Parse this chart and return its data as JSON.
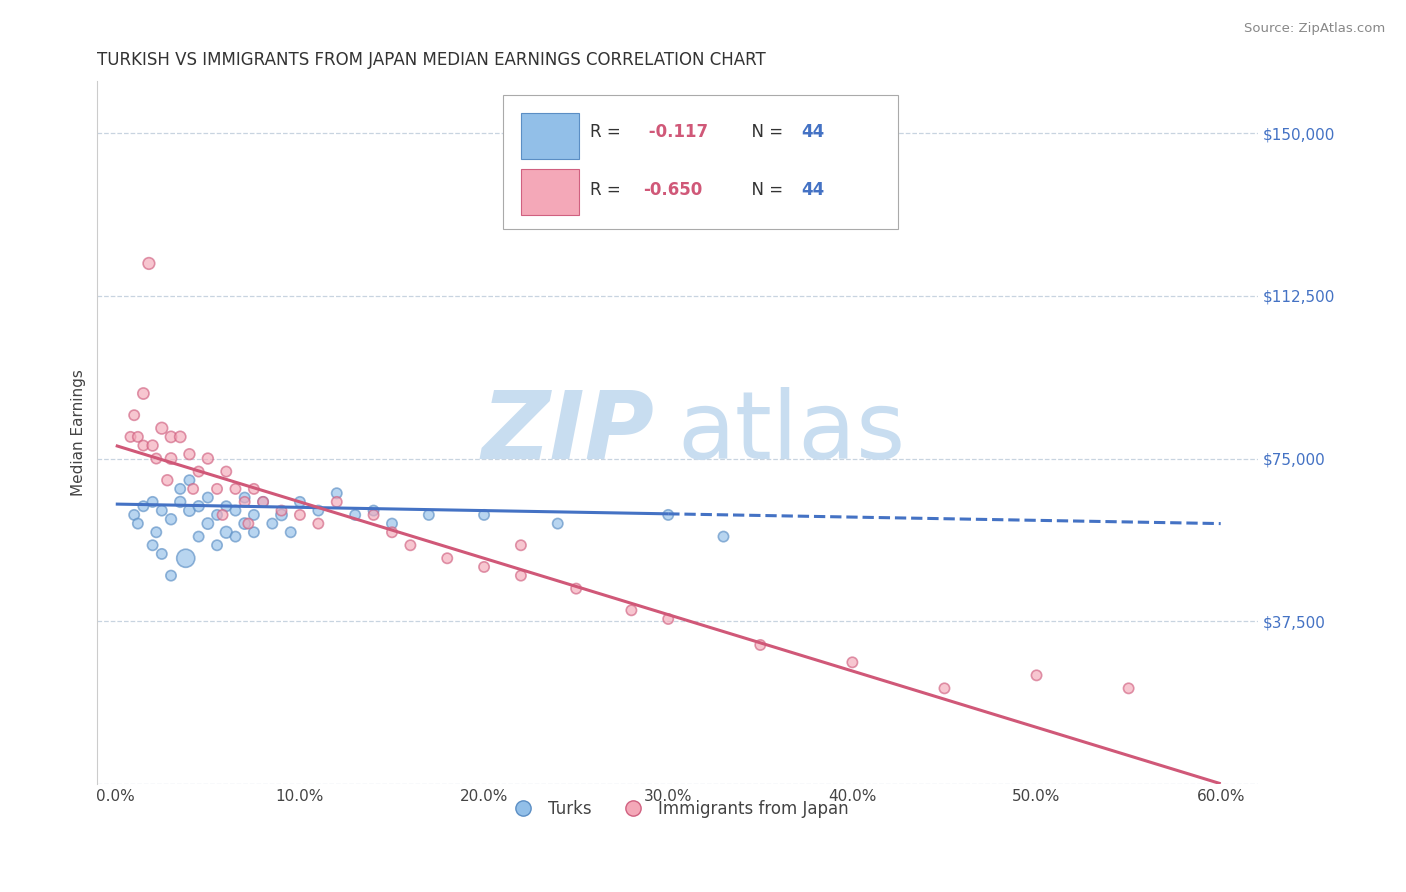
{
  "title": "TURKISH VS IMMIGRANTS FROM JAPAN MEDIAN EARNINGS CORRELATION CHART",
  "source_text": "Source: ZipAtlas.com",
  "xlabel_ticks": [
    "0.0%",
    "10.0%",
    "20.0%",
    "30.0%",
    "40.0%",
    "50.0%",
    "60.0%"
  ],
  "xlabel_vals": [
    0.0,
    10.0,
    20.0,
    30.0,
    40.0,
    50.0,
    60.0
  ],
  "ylabel_ticks": [
    0,
    37500,
    75000,
    112500,
    150000
  ],
  "ylabel_labels": [
    "",
    "$37,500",
    "$75,000",
    "$112,500",
    "$150,000"
  ],
  "ylim": [
    0,
    162000
  ],
  "xlim": [
    -1,
    62
  ],
  "legend_labels_bottom": [
    "Turks",
    "Immigrants from Japan"
  ],
  "turks_color": "#92bfe8",
  "japan_color": "#f4a8b8",
  "turks_edge_color": "#5b8ec4",
  "japan_edge_color": "#d06080",
  "trend_blue_color": "#4472c4",
  "trend_pink_color": "#d05878",
  "watermark_zip": "ZIP",
  "watermark_atlas": "atlas",
  "watermark_color": "#c8ddf0",
  "grid_color": "#c8d4e0",
  "background_color": "#ffffff",
  "r_color": "#d05878",
  "n_color": "#4472c4",
  "turks_x": [
    1.0,
    1.5,
    2.0,
    2.5,
    3.0,
    3.5,
    3.5,
    4.0,
    4.0,
    4.5,
    5.0,
    5.0,
    5.5,
    6.0,
    6.0,
    6.5,
    7.0,
    7.0,
    7.5,
    8.0,
    8.5,
    9.0,
    9.5,
    10.0,
    11.0,
    12.0,
    13.0,
    14.0,
    15.0,
    17.0,
    20.0,
    24.0,
    30.0,
    33.0,
    2.0,
    2.5,
    3.0,
    4.5,
    5.5,
    6.5,
    7.5,
    1.2,
    3.8,
    2.2
  ],
  "turks_y": [
    62000,
    64000,
    65000,
    63000,
    61000,
    68000,
    65000,
    70000,
    63000,
    64000,
    66000,
    60000,
    62000,
    64000,
    58000,
    63000,
    66000,
    60000,
    62000,
    65000,
    60000,
    62000,
    58000,
    65000,
    63000,
    67000,
    62000,
    63000,
    60000,
    62000,
    62000,
    60000,
    62000,
    57000,
    55000,
    53000,
    48000,
    57000,
    55000,
    57000,
    58000,
    60000,
    52000,
    58000
  ],
  "japan_x": [
    0.8,
    1.0,
    1.2,
    1.5,
    1.8,
    2.0,
    2.2,
    2.5,
    3.0,
    3.0,
    3.5,
    4.0,
    4.5,
    5.0,
    5.5,
    6.0,
    6.5,
    7.0,
    7.5,
    8.0,
    9.0,
    10.0,
    11.0,
    12.0,
    14.0,
    15.0,
    16.0,
    18.0,
    20.0,
    22.0,
    25.0,
    28.0,
    30.0,
    35.0,
    40.0,
    50.0,
    55.0,
    1.5,
    2.8,
    4.2,
    5.8,
    7.2,
    22.0,
    45.0
  ],
  "japan_y": [
    80000,
    85000,
    80000,
    78000,
    120000,
    78000,
    75000,
    82000,
    80000,
    75000,
    80000,
    76000,
    72000,
    75000,
    68000,
    72000,
    68000,
    65000,
    68000,
    65000,
    63000,
    62000,
    60000,
    65000,
    62000,
    58000,
    55000,
    52000,
    50000,
    48000,
    45000,
    40000,
    38000,
    32000,
    28000,
    25000,
    22000,
    90000,
    70000,
    68000,
    62000,
    60000,
    55000,
    22000
  ],
  "turks_sizes": [
    55,
    55,
    55,
    55,
    60,
    55,
    60,
    55,
    65,
    60,
    55,
    65,
    55,
    55,
    70,
    55,
    55,
    65,
    55,
    55,
    55,
    65,
    55,
    55,
    55,
    55,
    55,
    55,
    55,
    55,
    55,
    55,
    55,
    55,
    55,
    55,
    55,
    55,
    55,
    55,
    55,
    55,
    170,
    55
  ],
  "japan_sizes": [
    55,
    55,
    55,
    55,
    70,
    60,
    55,
    70,
    65,
    65,
    65,
    60,
    55,
    60,
    55,
    55,
    55,
    55,
    55,
    55,
    55,
    55,
    55,
    55,
    55,
    55,
    55,
    55,
    55,
    55,
    55,
    55,
    55,
    55,
    55,
    55,
    55,
    65,
    60,
    55,
    55,
    55,
    55,
    55
  ],
  "blue_line_x0": 0,
  "blue_line_x1": 60,
  "blue_line_y0": 64500,
  "blue_line_y1": 60000,
  "blue_solid_end": 30,
  "pink_line_x0": 0,
  "pink_line_x1": 60,
  "pink_line_y0": 78000,
  "pink_line_y1": 0
}
